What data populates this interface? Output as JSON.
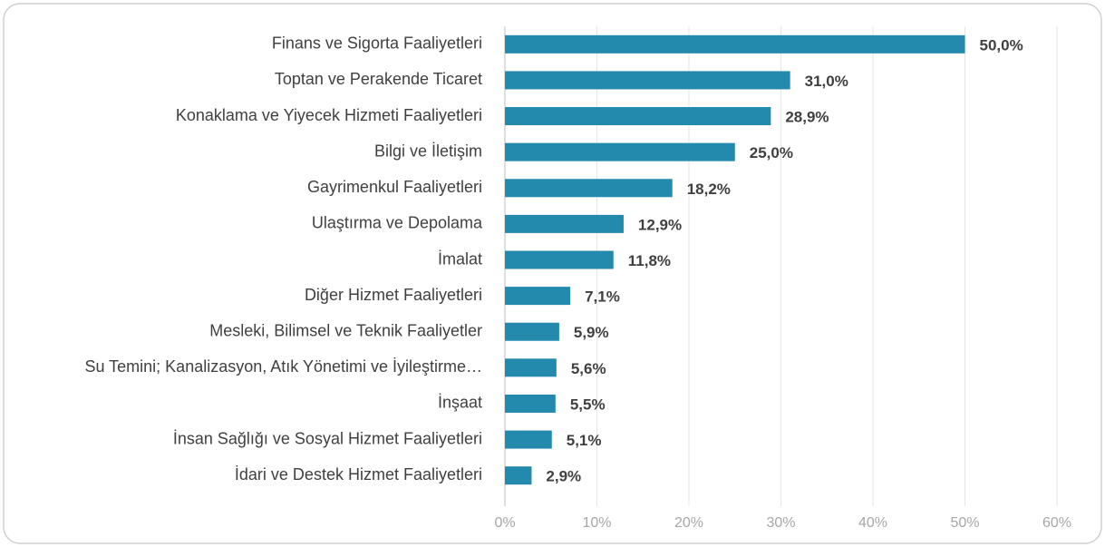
{
  "chart_data": {
    "type": "bar",
    "orientation": "horizontal",
    "categories": [
      "Finans ve Sigorta Faaliyetleri",
      "Toptan ve Perakende Ticaret",
      "Konaklama ve Yiyecek Hizmeti Faaliyetleri",
      "Bilgi ve İletişim",
      "Gayrimenkul Faaliyetleri",
      "Ulaştırma ve Depolama",
      "İmalat",
      "Diğer Hizmet Faaliyetleri",
      "Mesleki, Bilimsel ve Teknik Faaliyetler",
      "Su Temini; Kanalizasyon, Atık Yönetimi ve İyileştirme…",
      "İnşaat",
      "İnsan Sağlığı ve Sosyal Hizmet Faaliyetleri",
      "İdari ve Destek Hizmet Faaliyetleri"
    ],
    "values": [
      50.0,
      31.0,
      28.9,
      25.0,
      18.2,
      12.9,
      11.8,
      7.1,
      5.9,
      5.6,
      5.5,
      5.1,
      2.9
    ],
    "value_labels": [
      "50,0%",
      "31,0%",
      "28,9%",
      "25,0%",
      "18,2%",
      "12,9%",
      "11,8%",
      "7,1%",
      "5,9%",
      "5,6%",
      "5,5%",
      "5,1%",
      "2,9%"
    ],
    "color": "#2389ad",
    "xlim": [
      0,
      60
    ],
    "xticks": [
      {
        "value": 0,
        "label": "0%"
      },
      {
        "value": 10,
        "label": "10%"
      },
      {
        "value": 20,
        "label": "20%"
      },
      {
        "value": 30,
        "label": "30%"
      },
      {
        "value": 40,
        "label": "40%"
      },
      {
        "value": 50,
        "label": "50%"
      },
      {
        "value": 60,
        "label": "60%"
      }
    ],
    "grid": true
  }
}
